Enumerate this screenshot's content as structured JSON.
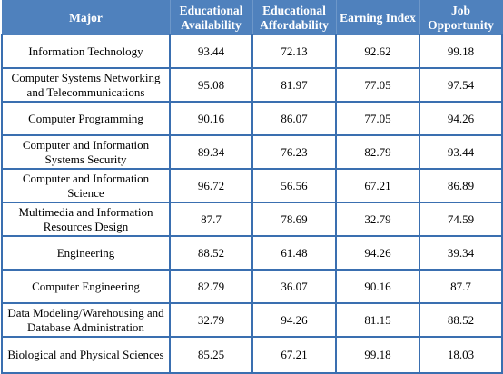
{
  "table": {
    "headers": [
      "Major",
      "Educational Availability",
      "Educational Affordability",
      "Earning Index",
      "Job Opportunity"
    ],
    "rows": [
      [
        "Information Technology",
        "93.44",
        "72.13",
        "92.62",
        "99.18"
      ],
      [
        "Computer Systems Networking and Telecommunications",
        "95.08",
        "81.97",
        "77.05",
        "97.54"
      ],
      [
        "Computer Programming",
        "90.16",
        "86.07",
        "77.05",
        "94.26"
      ],
      [
        "Computer and Information Systems Security",
        "89.34",
        "76.23",
        "82.79",
        "93.44"
      ],
      [
        "Computer and Information Science",
        "96.72",
        "56.56",
        "67.21",
        "86.89"
      ],
      [
        "Multimedia and Information Resources Design",
        "87.7",
        "78.69",
        "32.79",
        "74.59"
      ],
      [
        "Engineering",
        "88.52",
        "61.48",
        "94.26",
        "39.34"
      ],
      [
        "Computer Engineering",
        "82.79",
        "36.07",
        "90.16",
        "87.7"
      ],
      [
        "Data Modeling/Warehousing and Database Administration",
        "32.79",
        "94.26",
        "81.15",
        "88.52"
      ],
      [
        "Biological and Physical Sciences",
        "85.25",
        "67.21",
        "99.18",
        "18.03"
      ]
    ]
  },
  "colors": {
    "header_bg": "#4f81bd",
    "header_text": "#ffffff",
    "grid": "#3a6fb0"
  }
}
